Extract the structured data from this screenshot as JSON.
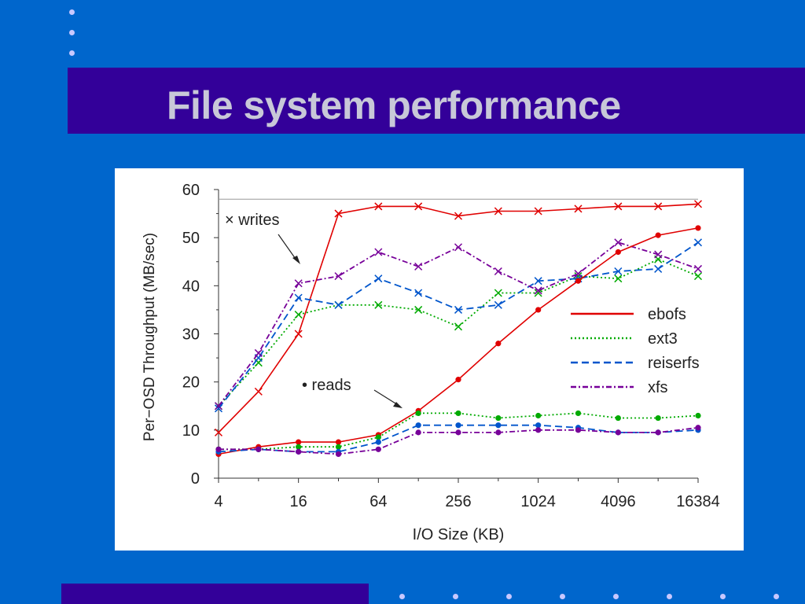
{
  "slide": {
    "title": "File system performance",
    "colors": {
      "background": "#0066cc",
      "band": "#330099",
      "title": "#c8c8d8"
    }
  },
  "chart_data": {
    "type": "line",
    "title": "",
    "xlabel": "I/O Size (KB)",
    "ylabel": "Per−OSD Throughput (MB/sec)",
    "x_scale": "log2",
    "x": [
      4,
      8,
      16,
      32,
      64,
      128,
      256,
      512,
      1024,
      2048,
      4096,
      8192,
      16384
    ],
    "x_ticks": [
      4,
      16,
      64,
      256,
      1024,
      4096,
      16384
    ],
    "x_tick_labels": [
      "4",
      "16",
      "64",
      "256",
      "1024",
      "4096",
      "16384"
    ],
    "ylim": [
      0,
      60
    ],
    "y_ticks": [
      0,
      10,
      20,
      30,
      40,
      50,
      60
    ],
    "y_tick_labels": [
      "0",
      "10",
      "20",
      "30",
      "40",
      "50",
      "60"
    ],
    "reference_line": 58,
    "legend": {
      "placement": "right",
      "entries": [
        {
          "name": "ebofs",
          "color": "#e00000",
          "dash": "solid"
        },
        {
          "name": "ext3",
          "color": "#00aa00",
          "dash": "dotted"
        },
        {
          "name": "reiserfs",
          "color": "#0055cc",
          "dash": "dashed"
        },
        {
          "name": "xfs",
          "color": "#770099",
          "dash": "dashdot"
        }
      ]
    },
    "annotations": [
      {
        "text": "× writes"
      },
      {
        "text": "• reads"
      }
    ],
    "series": [
      {
        "name": "ebofs",
        "op": "writes",
        "marker": "x",
        "color": "#e00000",
        "dash": "solid",
        "values": [
          9.5,
          18,
          30,
          55,
          56.5,
          56.5,
          54.5,
          55.5,
          55.5,
          56,
          56.5,
          56.5,
          57
        ]
      },
      {
        "name": "ext3",
        "op": "writes",
        "marker": "x",
        "color": "#00aa00",
        "dash": "dotted",
        "values": [
          15,
          24,
          34,
          36,
          36,
          35,
          31.5,
          38.5,
          38.5,
          42,
          41.5,
          45.5,
          42
        ]
      },
      {
        "name": "reiserfs",
        "op": "writes",
        "marker": "x",
        "color": "#0055cc",
        "dash": "dashed",
        "values": [
          14.5,
          25,
          37.5,
          36,
          41.5,
          38.5,
          35,
          36,
          41,
          41.5,
          43,
          43.5,
          49
        ]
      },
      {
        "name": "xfs",
        "op": "writes",
        "marker": "x",
        "color": "#770099",
        "dash": "dashdot",
        "values": [
          15,
          26,
          40.5,
          42,
          47,
          44,
          48,
          43,
          39,
          42.5,
          49,
          46.5,
          43.5
        ]
      },
      {
        "name": "ebofs",
        "op": "reads",
        "marker": "dot",
        "color": "#e00000",
        "dash": "solid",
        "values": [
          5,
          6.5,
          7.5,
          7.5,
          9,
          14,
          20.5,
          28,
          35,
          41,
          47,
          50.5,
          52
        ]
      },
      {
        "name": "ext3",
        "op": "reads",
        "marker": "dot",
        "color": "#00aa00",
        "dash": "dotted",
        "values": [
          6,
          6,
          6.5,
          6.5,
          8.5,
          13.5,
          13.5,
          12.5,
          13,
          13.5,
          12.5,
          12.5,
          13
        ]
      },
      {
        "name": "reiserfs",
        "op": "reads",
        "marker": "dot",
        "color": "#0055cc",
        "dash": "dashed",
        "values": [
          5.5,
          6,
          5.5,
          5.5,
          7.5,
          11,
          11,
          11,
          11,
          10.5,
          9.5,
          9.5,
          10
        ]
      },
      {
        "name": "xfs",
        "op": "reads",
        "marker": "dot",
        "color": "#770099",
        "dash": "dashdot",
        "values": [
          6,
          6,
          5.5,
          5,
          6,
          9.5,
          9.5,
          9.5,
          10,
          10,
          9.5,
          9.5,
          10.5
        ]
      }
    ]
  }
}
